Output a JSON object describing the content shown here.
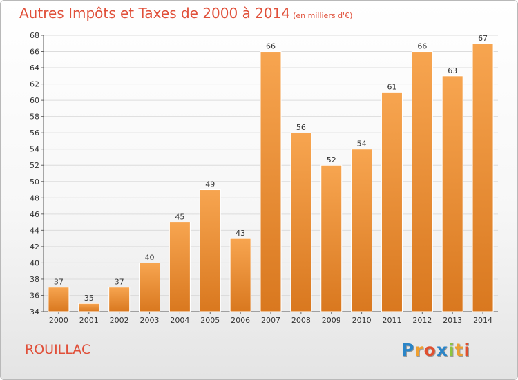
{
  "title": "Autres Impôts et Taxes de 2000 à 2014",
  "subtitle": "(en milliers d'€)",
  "commune": "ROUILLAC",
  "logo": {
    "letters": [
      "P",
      "r",
      "o",
      "x",
      "i",
      "t",
      "i"
    ],
    "colors": [
      "#2a85c8",
      "#f0a030",
      "#e05030",
      "#2a85c8",
      "#8cc63f",
      "#f0a030",
      "#e05030"
    ]
  },
  "colors": {
    "bar_light": "#f7a550",
    "bar_dark": "#d9781f",
    "title": "#e0503a",
    "grid": "#dcdcdc"
  },
  "chart_data": {
    "type": "bar",
    "categories": [
      "2000",
      "2001",
      "2002",
      "2003",
      "2004",
      "2005",
      "2006",
      "2007",
      "2008",
      "2009",
      "2010",
      "2011",
      "2012",
      "2013",
      "2014"
    ],
    "values": [
      37,
      35,
      37,
      40,
      45,
      49,
      43,
      66,
      56,
      52,
      54,
      61,
      66,
      63,
      67
    ],
    "title": "Autres Impôts et Taxes de 2000 à 2014",
    "subtitle": "(en milliers d'€)",
    "ylim": [
      34,
      68
    ],
    "yticks": [
      34,
      36,
      38,
      40,
      42,
      44,
      46,
      48,
      50,
      52,
      54,
      56,
      58,
      60,
      62,
      64,
      66,
      68
    ],
    "grid": true,
    "data_labels": true
  }
}
